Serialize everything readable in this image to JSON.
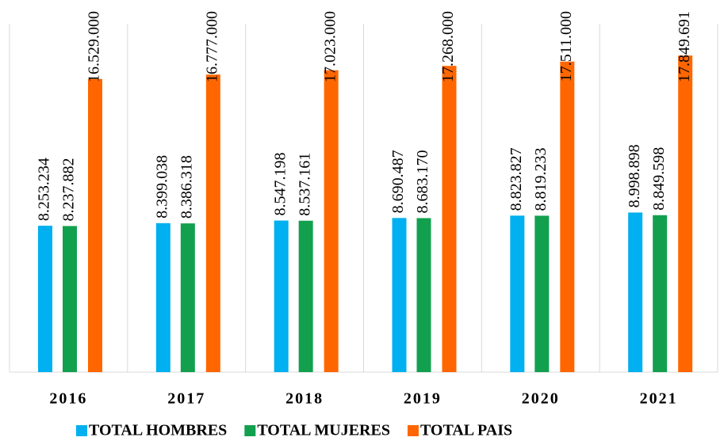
{
  "chart_data": {
    "type": "bar",
    "categories": [
      "2016",
      "2017",
      "2018",
      "2019",
      "2020",
      "2021"
    ],
    "series": [
      {
        "name": "TOTAL HOMBRES",
        "color": "#00b0f0",
        "values": [
          8253234,
          8399038,
          8547198,
          8690487,
          8823827,
          8998898
        ],
        "value_labels": [
          "8.253.234",
          "8.399.038",
          "8.547.198",
          "8.690.487",
          "8.823.827",
          "8.998.898"
        ]
      },
      {
        "name": "TOTAL MUJERES",
        "color": "#12a04f",
        "values": [
          8237882,
          8386318,
          8537161,
          8683170,
          8819233,
          8849598
        ],
        "value_labels": [
          "8.237.882",
          "8.386.318",
          "8.537.161",
          "8.683.170",
          "8.819.233",
          "8.849.598"
        ]
      },
      {
        "name": "TOTAL PAIS",
        "color": "#ff6600",
        "values": [
          16529000,
          16777000,
          17023000,
          17268000,
          17511000,
          17849691
        ],
        "value_labels": [
          "16.529.000",
          "16.777.000",
          "17.023.000",
          "17.268.000",
          "17.511.000",
          "17.849.691"
        ]
      }
    ],
    "ylim": [
      0,
      20000000
    ]
  }
}
